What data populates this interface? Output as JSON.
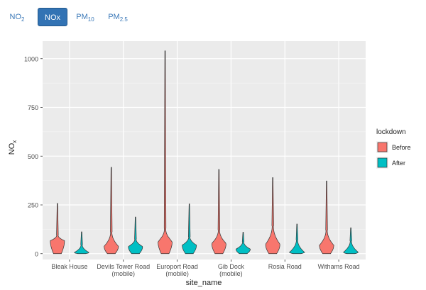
{
  "tabs": [
    {
      "main": "NO",
      "sub": "2",
      "active": false
    },
    {
      "main": "NOx",
      "sub": "",
      "active": true
    },
    {
      "main": "PM",
      "sub": "10",
      "active": false
    },
    {
      "main": "PM",
      "sub": "2.5",
      "active": false
    }
  ],
  "chart_data": {
    "type": "violin",
    "ylabel_main": "NO",
    "ylabel_sub": "x",
    "xlabel": "site_name",
    "ylim": [
      -30,
      1090
    ],
    "yticks": [
      0,
      250,
      500,
      750,
      1000
    ],
    "grid": true,
    "legend": {
      "title": "lockdown",
      "position": "right"
    },
    "categories": [
      [
        "Bleak House"
      ],
      [
        "Devils Tower Road",
        "(mobile)"
      ],
      [
        "Europort Road",
        "(mobile)"
      ],
      [
        "Gib Dock",
        "(mobile)"
      ],
      [
        "Rosia Road"
      ],
      [
        "Withams Road"
      ]
    ],
    "series": [
      {
        "name": "Before",
        "color": "#f8766d",
        "min": [
          0,
          0,
          0,
          0,
          0,
          0
        ],
        "max": [
          258,
          443,
          1040,
          432,
          390,
          373
        ],
        "median": [
          25,
          40,
          40,
          25,
          22,
          25
        ],
        "mode": [
          65,
          35,
          60,
          50,
          45,
          40
        ],
        "body_top": [
          95,
          110,
          125,
          120,
          140,
          120
        ]
      },
      {
        "name": "After",
        "color": "#00bfc4",
        "min": [
          0,
          0,
          0,
          0,
          0,
          0
        ],
        "max": [
          112,
          188,
          255,
          110,
          152,
          133
        ],
        "median": [
          5,
          32,
          42,
          22,
          7,
          8
        ],
        "mode": [
          5,
          35,
          42,
          22,
          6,
          6
        ],
        "body_top": [
          45,
          75,
          85,
          60,
          70,
          65
        ]
      }
    ]
  }
}
